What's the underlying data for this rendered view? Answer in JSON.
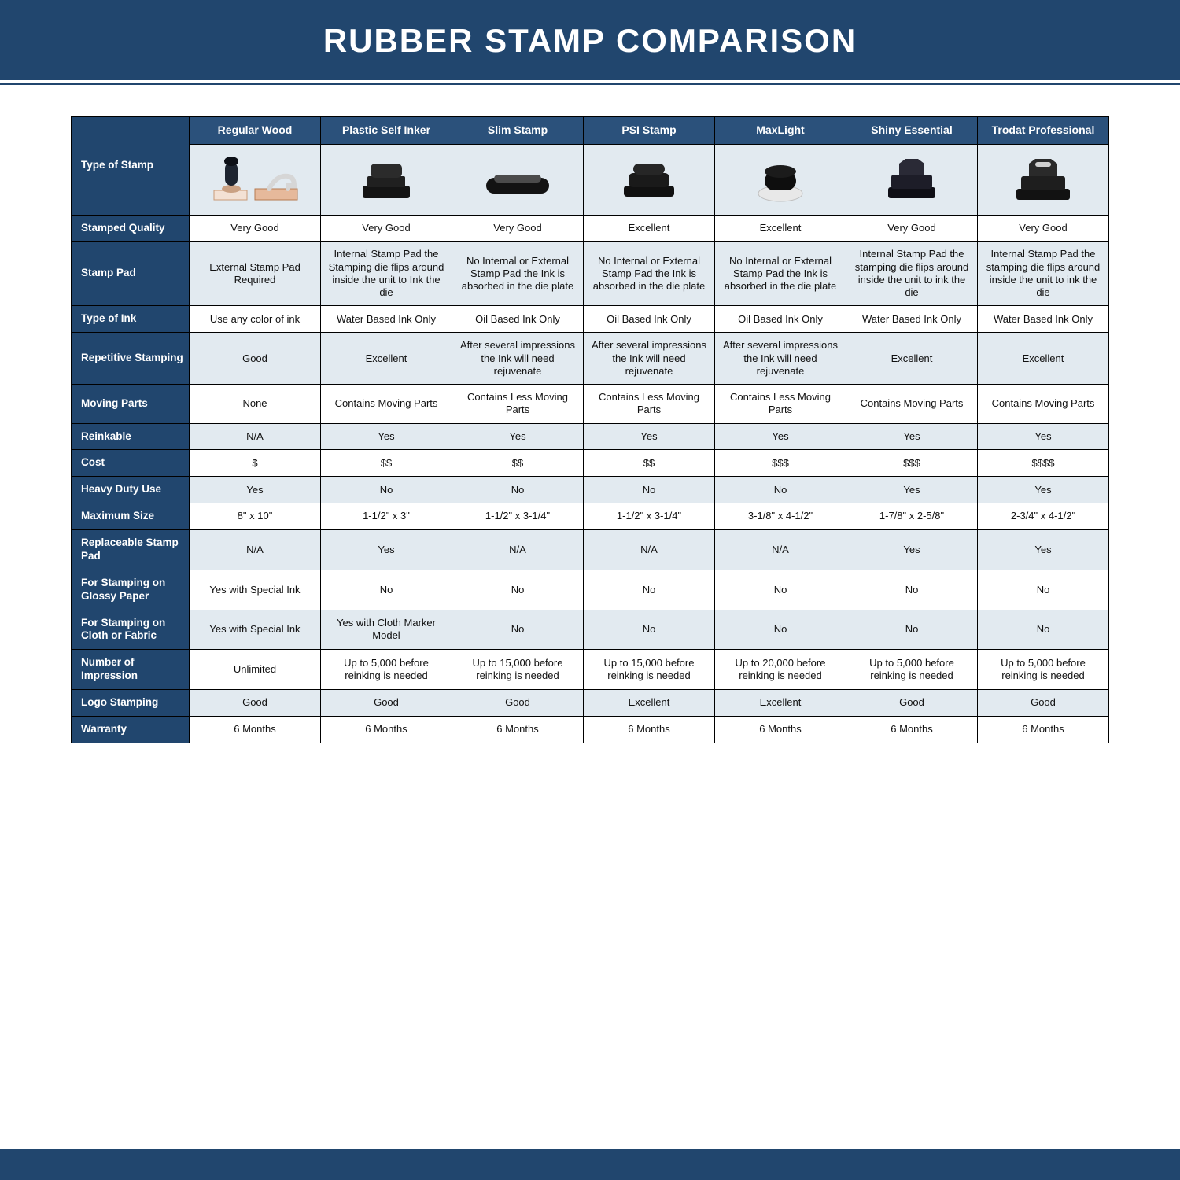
{
  "title": "RUBBER STAMP COMPARISON",
  "colors": {
    "navy": "#21466e",
    "navy2": "#2b517b",
    "lightblue": "#e2eaf0",
    "border": "#000000",
    "page": "#ffffff"
  },
  "columns": [
    {
      "label": "Regular Wood",
      "icon": "wood"
    },
    {
      "label": "Plastic Self Inker",
      "icon": "selfinker"
    },
    {
      "label": "Slim Stamp",
      "icon": "slim"
    },
    {
      "label": "PSI Stamp",
      "icon": "psi"
    },
    {
      "label": "MaxLight",
      "icon": "maxlight"
    },
    {
      "label": "Shiny Essential",
      "icon": "shiny"
    },
    {
      "label": "Trodat Professional",
      "icon": "trodat"
    }
  ],
  "rows": [
    {
      "label": "Type of Stamp",
      "is_image_row": true
    },
    {
      "label": "Stamped Quality",
      "cells": [
        "Very Good",
        "Very Good",
        "Very Good",
        "Excellent",
        "Excellent",
        "Very Good",
        "Very Good"
      ]
    },
    {
      "label": "Stamp Pad",
      "cells": [
        "External Stamp Pad Required",
        "Internal Stamp Pad the Stamping die flips around inside the unit to Ink the die",
        "No Internal or External Stamp Pad the Ink is absorbed in the die plate",
        "No Internal or External Stamp Pad the Ink is absorbed in the die plate",
        "No Internal or External Stamp Pad the Ink is absorbed in the die plate",
        "Internal Stamp Pad the stamping die flips around inside the unit to ink the die",
        "Internal Stamp Pad the stamping die flips around inside the unit to ink the die"
      ]
    },
    {
      "label": "Type of Ink",
      "cells": [
        "Use any color of ink",
        "Water Based Ink Only",
        "Oil Based Ink Only",
        "Oil Based Ink Only",
        "Oil Based Ink Only",
        "Water Based Ink Only",
        "Water Based Ink Only"
      ]
    },
    {
      "label": "Repetitive Stamping",
      "cells": [
        "Good",
        "Excellent",
        "After several impressions the Ink will need rejuvenate",
        "After several impressions the Ink will need rejuvenate",
        "After several impressions the Ink will need rejuvenate",
        "Excellent",
        "Excellent"
      ]
    },
    {
      "label": "Moving Parts",
      "cells": [
        "None",
        "Contains Moving Parts",
        "Contains Less Moving Parts",
        "Contains Less Moving Parts",
        "Contains Less Moving Parts",
        "Contains Moving Parts",
        "Contains Moving Parts"
      ]
    },
    {
      "label": "Reinkable",
      "cells": [
        "N/A",
        "Yes",
        "Yes",
        "Yes",
        "Yes",
        "Yes",
        "Yes"
      ]
    },
    {
      "label": "Cost",
      "cells": [
        "$",
        "$$",
        "$$",
        "$$",
        "$$$",
        "$$$",
        "$$$$"
      ]
    },
    {
      "label": "Heavy Duty Use",
      "cells": [
        "Yes",
        "No",
        "No",
        "No",
        "No",
        "Yes",
        "Yes"
      ]
    },
    {
      "label": "Maximum Size",
      "cells": [
        "8\" x 10\"",
        "1-1/2\" x 3\"",
        "1-1/2\" x 3-1/4\"",
        "1-1/2\" x 3-1/4\"",
        "3-1/8\" x 4-1/2\"",
        "1-7/8\" x 2-5/8\"",
        "2-3/4\" x 4-1/2\""
      ]
    },
    {
      "label": "Replaceable Stamp Pad",
      "cells": [
        "N/A",
        "Yes",
        "N/A",
        "N/A",
        "N/A",
        "Yes",
        "Yes"
      ]
    },
    {
      "label": "For Stamping on Glossy Paper",
      "cells": [
        "Yes with Special Ink",
        "No",
        "No",
        "No",
        "No",
        "No",
        "No"
      ]
    },
    {
      "label": "For Stamping on Cloth or Fabric",
      "cells": [
        "Yes with Special Ink",
        "Yes with Cloth Marker Model",
        "No",
        "No",
        "No",
        "No",
        "No"
      ]
    },
    {
      "label": "Number of Impression",
      "cells": [
        "Unlimited",
        "Up to 5,000 before reinking is needed",
        "Up to 15,000 before reinking is needed",
        "Up to 15,000 before reinking is needed",
        "Up to 20,000 before reinking is needed",
        "Up to 5,000 before reinking is needed",
        "Up to 5,000 before reinking is needed"
      ]
    },
    {
      "label": "Logo Stamping",
      "cells": [
        "Good",
        "Good",
        "Good",
        "Excellent",
        "Excellent",
        "Good",
        "Good"
      ]
    },
    {
      "label": "Warranty",
      "cells": [
        "6 Months",
        "6 Months",
        "6 Months",
        "6 Months",
        "6 Months",
        "6 Months",
        "6 Months"
      ]
    }
  ]
}
